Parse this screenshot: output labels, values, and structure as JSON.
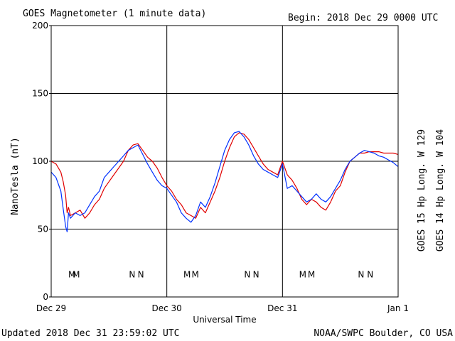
{
  "header": {
    "title": "GOES Magnetometer (1 minute data)",
    "begin": "Begin:  2018 Dec 29 0000 UTC"
  },
  "footer": {
    "updated": "Updated 2018 Dec 31 23:59:02 UTC",
    "credit": "NOAA/SWPC Boulder, CO USA"
  },
  "chart_data": {
    "type": "line",
    "xlabel": "Universal Time",
    "ylabel": "NanoTesla (nT)",
    "ylim": [
      0,
      200
    ],
    "xlim": [
      0,
      72
    ],
    "x_unit": "hours since 2018 Dec 29 0000 UTC",
    "x_ticks": [
      {
        "x": 0,
        "label": "Dec 29"
      },
      {
        "x": 24,
        "label": "Dec 30"
      },
      {
        "x": 48,
        "label": "Dec 31"
      },
      {
        "x": 72,
        "label": "Jan 1"
      }
    ],
    "y_ticks": [
      0,
      50,
      100,
      150,
      200
    ],
    "grid": true,
    "series": [
      {
        "name": "GOES 15 Hp  Long. W 129",
        "color": "#e00000",
        "x": [
          0,
          1,
          2,
          2.5,
          3,
          3.3,
          3.6,
          4,
          5,
          6,
          7,
          8,
          9,
          10,
          11,
          12,
          13,
          14,
          15,
          16,
          17,
          18,
          19,
          20,
          21,
          22,
          23,
          24,
          25,
          26,
          27,
          28,
          29,
          30,
          31,
          32,
          33,
          34,
          35,
          36,
          37,
          38,
          39,
          40,
          41,
          42,
          43,
          44,
          45,
          46,
          47,
          48,
          49,
          50,
          51,
          52,
          53,
          54,
          55,
          56,
          57,
          58,
          59,
          60,
          61,
          62,
          63,
          64,
          65,
          66,
          67,
          68,
          69,
          70,
          71,
          72
        ],
        "y": [
          100,
          98,
          92,
          85,
          75,
          62,
          66,
          60,
          62,
          64,
          58,
          62,
          68,
          72,
          80,
          85,
          90,
          95,
          100,
          108,
          112,
          113,
          108,
          103,
          100,
          95,
          88,
          82,
          78,
          72,
          68,
          62,
          60,
          58,
          66,
          62,
          70,
          78,
          88,
          100,
          110,
          118,
          121,
          120,
          116,
          110,
          104,
          98,
          94,
          92,
          90,
          100,
          90,
          86,
          80,
          72,
          68,
          72,
          70,
          66,
          64,
          70,
          78,
          82,
          92,
          100,
          103,
          106,
          106,
          107,
          107,
          107,
          106,
          106,
          106,
          105
        ]
      },
      {
        "name": "GOES 14 Hp  Long. W 104",
        "color": "#0030ff",
        "x": [
          0,
          1,
          2,
          2.5,
          3,
          3.3,
          3.6,
          4,
          5,
          6,
          7,
          8,
          9,
          10,
          11,
          12,
          13,
          14,
          15,
          16,
          17,
          18,
          19,
          20,
          21,
          22,
          23,
          24,
          25,
          26,
          27,
          28,
          29,
          30,
          31,
          32,
          33,
          34,
          35,
          36,
          37,
          38,
          39,
          40,
          41,
          42,
          43,
          44,
          45,
          46,
          47,
          48,
          49,
          50,
          51,
          52,
          53,
          54,
          55,
          56,
          57,
          58,
          59,
          60,
          61,
          62,
          63,
          64,
          65,
          66,
          67,
          68,
          69,
          70,
          71,
          72
        ],
        "y": [
          92,
          88,
          78,
          65,
          52,
          48,
          62,
          58,
          62,
          60,
          62,
          68,
          74,
          78,
          88,
          92,
          96,
          100,
          104,
          108,
          110,
          112,
          105,
          98,
          92,
          86,
          82,
          80,
          75,
          70,
          62,
          58,
          55,
          60,
          70,
          66,
          74,
          84,
          96,
          108,
          116,
          121,
          122,
          118,
          112,
          104,
          98,
          94,
          92,
          90,
          88,
          98,
          80,
          82,
          78,
          74,
          70,
          72,
          76,
          72,
          70,
          74,
          80,
          86,
          94,
          100,
          103,
          106,
          108,
          107,
          106,
          104,
          103,
          101,
          99,
          96
        ]
      }
    ],
    "annotations": [
      {
        "x": 4.3,
        "text": "M",
        "color": "#0030ff"
      },
      {
        "x": 5.2,
        "text": "M",
        "color": "#e00000"
      },
      {
        "x": 16.8,
        "text": "N",
        "color": "#0030ff"
      },
      {
        "x": 18.6,
        "text": "N",
        "color": "#e00000"
      },
      {
        "x": 28.2,
        "text": "M",
        "color": "#0030ff"
      },
      {
        "x": 29.9,
        "text": "M",
        "color": "#e00000"
      },
      {
        "x": 40.7,
        "text": "N",
        "color": "#0030ff"
      },
      {
        "x": 42.5,
        "text": "N",
        "color": "#e00000"
      },
      {
        "x": 52.2,
        "text": "M",
        "color": "#0030ff"
      },
      {
        "x": 54.0,
        "text": "M",
        "color": "#e00000"
      },
      {
        "x": 64.3,
        "text": "N",
        "color": "#0030ff"
      },
      {
        "x": 66.2,
        "text": "N",
        "color": "#e00000"
      }
    ],
    "annotation_level": 17
  }
}
